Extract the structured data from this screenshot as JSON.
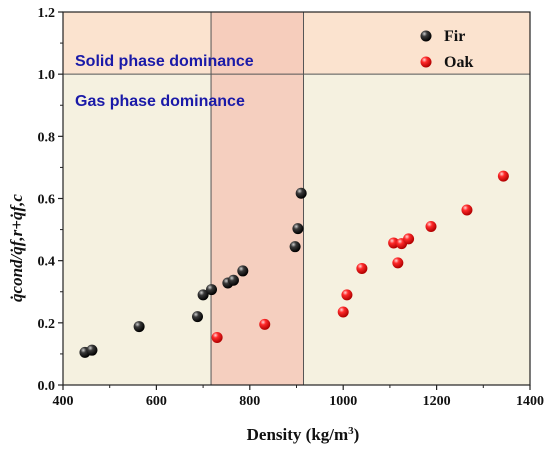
{
  "chart_data": {
    "type": "scatter",
    "title": "",
    "xlabel": "Density (kg/m",
    "xlabel_sup": "3",
    "xlabel_end": ")",
    "ylabel": "q̇cond/q̇f,r+q̇f,c",
    "xlim": [
      400,
      1400
    ],
    "ylim": [
      0,
      1.2
    ],
    "x_ticks": [
      400,
      600,
      800,
      1000,
      1200,
      1400
    ],
    "y_ticks": [
      0.0,
      0.2,
      0.4,
      0.6,
      0.8,
      1.0,
      1.2
    ],
    "y_tick_labels": [
      "0.0",
      "0.2",
      "0.4",
      "0.6",
      "0.8",
      "1.0",
      "1.2"
    ],
    "grid": false,
    "legend_position": "top-right",
    "threshold_y": 1.0,
    "highlight_band_x": [
      717,
      915
    ],
    "annotations": {
      "upper": "Solid phase dominance",
      "lower": "Gas phase dominance"
    },
    "colors": {
      "upper_region": "#fbe3cf",
      "lower_region": "#f5f1e0",
      "band": "#f4c9b8",
      "fir": "#000000",
      "oak": "#ff1a1a"
    },
    "series": [
      {
        "name": "Fir",
        "color": "#000000",
        "points": [
          [
            447,
            0.105
          ],
          [
            462,
            0.112
          ],
          [
            563,
            0.188
          ],
          [
            688,
            0.22
          ],
          [
            700,
            0.29
          ],
          [
            718,
            0.307
          ],
          [
            753,
            0.328
          ],
          [
            765,
            0.337
          ],
          [
            785,
            0.367
          ],
          [
            897,
            0.445
          ],
          [
            903,
            0.503
          ],
          [
            910,
            0.617
          ]
        ]
      },
      {
        "name": "Oak",
        "color": "#ff1a1a",
        "points": [
          [
            730,
            0.153
          ],
          [
            832,
            0.195
          ],
          [
            1000,
            0.235
          ],
          [
            1008,
            0.29
          ],
          [
            1040,
            0.375
          ],
          [
            1108,
            0.457
          ],
          [
            1117,
            0.393
          ],
          [
            1125,
            0.455
          ],
          [
            1140,
            0.47
          ],
          [
            1188,
            0.51
          ],
          [
            1265,
            0.563
          ],
          [
            1343,
            0.672
          ]
        ]
      }
    ]
  }
}
